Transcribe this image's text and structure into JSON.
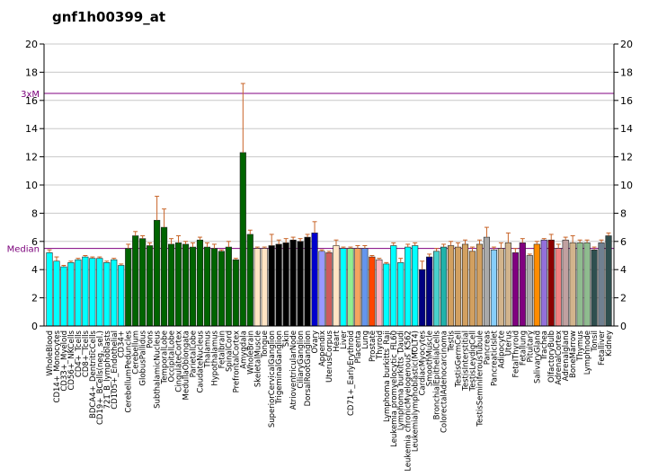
{
  "chart_data": {
    "type": "bar",
    "title": "gnf1h00399_at",
    "ylim": [
      0,
      20
    ],
    "yticks": [
      0,
      2,
      4,
      6,
      8,
      10,
      12,
      14,
      16,
      18,
      20
    ],
    "grid": true,
    "reference_lines": [
      {
        "label": "3xM",
        "value": 16.5,
        "color": "#800080"
      },
      {
        "label": "Median",
        "value": 5.5,
        "color": "#800080"
      }
    ],
    "categories": [
      "WholeBlood",
      "CD14+_Monocytes",
      "CD33+_Myeloid",
      "CD56+_NKCells",
      "CD4+_Tcells",
      "CD8+_Tcells",
      "BDCA4+_DentriticCells",
      "CD19+_BCells(neg._sel.)",
      "721_B_lymphoblasts",
      "CD105+_Endothelial",
      "CD34+",
      "CerebellumPeduncles",
      "Cerebellum",
      "GlobusPallidus",
      "Pons",
      "SubthalamicNucleus",
      "TemporalLobe",
      "OccipitalLobe",
      "CingulateCortex",
      "MedullaOblongata",
      "ParietalLobe",
      "CaudateNucleus",
      "Thalamus",
      "Hypothalamus",
      "Fetalbrain",
      "SpinalCord",
      "PrefrontalCortex",
      "Amygdala",
      "WholeBrain",
      "SkeletalMuscle",
      "Tongue",
      "SuperiorCervicalGanglion",
      "TrigeminalGanglion",
      "Skin",
      "AtrioventricularNode",
      "CiliaryGanglion",
      "DorsalRootGanglion",
      "Ovary",
      "Appendix",
      "UterusCorpus",
      "Heart",
      "Liver",
      "CD71+_EarlyErythroid",
      "Placenta",
      "Lung",
      "Prostate",
      "Thyroid",
      "Lymphoma burkitts_Raji",
      "Leukemia promyelocytic_HL60",
      "Lymphoma burkitts_Daudi",
      "Leukemia chronicMyelogenous_K562",
      "Leukemialymphoblastic(MOLT4)",
      "CardiacMyocytes",
      "SmoothMuscle",
      "BronchialEpithelialCells",
      "ColorectalAdenocarcinoma",
      "Testis",
      "TestisGermCell",
      "TestisInterstitial",
      "TestisLeydigCell",
      "TestisSeminiferousTubule",
      "Pancreas",
      "PancreaticIslet",
      "Adipocyte",
      "Uterus",
      "FetalThyroid",
      "Fetallung",
      "Pituitary",
      "SalivaryGland",
      "Trachea",
      "OlfactoryBulb",
      "AdrenalCortex",
      "Adrenalgland",
      "BoneMarrow",
      "Thymus",
      "Lymphnode",
      "Tonsil",
      "Fetalliver",
      "Kidney"
    ],
    "series": [
      {
        "values": [
          5.2,
          4.6,
          4.2,
          4.5,
          4.7,
          4.9,
          4.8,
          4.8,
          4.5,
          4.7,
          4.3,
          5.5,
          6.4,
          6.2,
          5.7,
          7.5,
          7.0,
          5.8,
          5.9,
          5.8,
          5.6,
          6.1,
          5.6,
          5.5,
          5.3,
          5.6,
          4.7,
          12.3,
          6.5,
          5.5,
          5.5,
          5.7,
          5.8,
          5.9,
          6.1,
          6.0,
          6.3,
          6.6,
          5.3,
          5.2,
          5.7,
          5.5,
          5.5,
          5.5,
          5.5,
          4.9,
          4.7,
          4.4,
          5.7,
          4.5,
          5.6,
          5.7,
          4.0,
          4.9,
          5.3,
          5.6,
          5.7,
          5.6,
          5.8,
          5.3,
          5.8,
          6.3,
          5.4,
          5.5,
          5.9,
          5.2,
          5.9,
          5.0,
          5.8,
          6.1,
          6.1,
          5.5,
          6.1,
          5.9,
          5.9,
          5.9,
          5.4,
          5.9,
          6.4
        ],
        "errors": [
          0.2,
          0.3,
          0.1,
          0.1,
          0.1,
          0.1,
          0.1,
          0.1,
          0.1,
          0.1,
          0.1,
          0.3,
          0.3,
          0.2,
          0.2,
          1.7,
          1.3,
          0.4,
          0.5,
          0.2,
          0.3,
          0.2,
          0.3,
          0.3,
          0.1,
          0.4,
          0.1,
          4.9,
          0.3,
          0.1,
          0.1,
          0.8,
          0.3,
          0.3,
          0.2,
          0.2,
          0.2,
          0.8,
          0.1,
          0.1,
          0.4,
          0.1,
          0.1,
          0.2,
          0.2,
          0.1,
          0.1,
          0.1,
          0.2,
          0.3,
          0.2,
          0.2,
          0.6,
          0.2,
          0.2,
          0.2,
          0.3,
          0.3,
          0.3,
          0.3,
          0.3,
          0.7,
          0.2,
          0.4,
          0.7,
          0.3,
          0.3,
          0.1,
          0.2,
          0.1,
          0.4,
          0.3,
          0.2,
          0.5,
          0.2,
          0.2,
          0.2,
          0.2,
          0.2
        ],
        "colors": [
          "#00ffff",
          "#00ffff",
          "#00ffff",
          "#00ffff",
          "#00ffff",
          "#00ffff",
          "#00ffff",
          "#00ffff",
          "#00ffff",
          "#00ffff",
          "#00ffff",
          "#006400",
          "#006400",
          "#006400",
          "#006400",
          "#006400",
          "#006400",
          "#006400",
          "#006400",
          "#006400",
          "#006400",
          "#006400",
          "#006400",
          "#006400",
          "#006400",
          "#006400",
          "#006400",
          "#006400",
          "#006400",
          "#ffe4c4",
          "#ffe4c4",
          "#000000",
          "#000000",
          "#000000",
          "#000000",
          "#000000",
          "#000000",
          "#0000cd",
          "#9999ff",
          "#cd5c5c",
          "#ffe4c4",
          "#00ffff",
          "#90ee90",
          "#f4a460",
          "#6495ed",
          "#ff4500",
          "#ffb6c1",
          "#00ffff",
          "#00ffff",
          "#00ffff",
          "#00ffff",
          "#00ffff",
          "#000080",
          "#000080",
          "#48d1cc",
          "#20b2aa",
          "#d2a060",
          "#d2a060",
          "#d2a060",
          "#d2a060",
          "#d2a060",
          "#a9a9a9",
          "#87cefa",
          "#d2b48c",
          "#d2b48c",
          "#800080",
          "#800080",
          "#a9a9a9",
          "#ff8c00",
          "#9370db",
          "#8b0000",
          "#f08080",
          "#c0a0a0",
          "#d2b48c",
          "#8fbc8f",
          "#8fbc8f",
          "#2f4f4f",
          "#708090",
          "#2f4f4f"
        ]
      }
    ]
  }
}
